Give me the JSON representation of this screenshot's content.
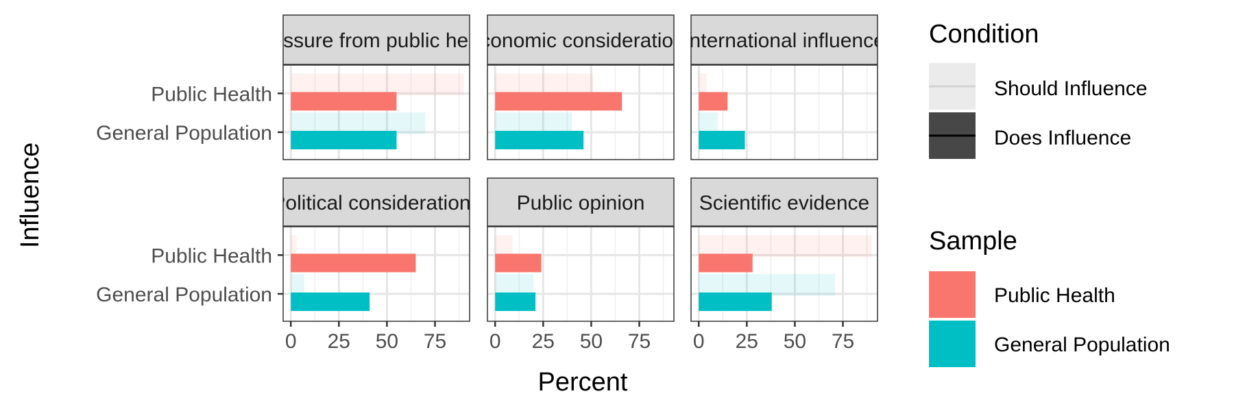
{
  "chart_data": {
    "type": "bar",
    "orientation": "horizontal",
    "facets": [
      "Pressure from public health",
      "Economic considerations",
      "International influence",
      "Political considerations",
      "Public opinion",
      "Scientific evidence"
    ],
    "categories": [
      "Public Health",
      "General Population"
    ],
    "series": [
      {
        "name": "Should Influence",
        "facet_values": [
          [
            90,
            70
          ],
          [
            51,
            40
          ],
          [
            4,
            10
          ],
          [
            3,
            7
          ],
          [
            9,
            20
          ],
          [
            90,
            71
          ]
        ]
      },
      {
        "name": "Does Influence",
        "facet_values": [
          [
            55,
            55
          ],
          [
            66,
            46
          ],
          [
            15,
            24
          ],
          [
            65,
            41
          ],
          [
            24,
            21
          ],
          [
            28,
            38
          ]
        ]
      }
    ],
    "xlabel": "Percent",
    "ylabel": "Influence",
    "xlim": [
      -4,
      93
    ],
    "xticks": [
      0,
      25,
      50,
      75
    ],
    "grid": true,
    "legends": [
      {
        "title": "Condition",
        "entries": [
          "Should Influence",
          "Does Influence"
        ]
      },
      {
        "title": "Sample",
        "entries": [
          "Public Health",
          "General Population"
        ]
      }
    ],
    "legend_position": "right",
    "colors": {
      "Public Health": "#F8766D",
      "General Population": "#00BFC4",
      "condition_should": "#EBEBEB",
      "condition_does": "#474747"
    }
  }
}
